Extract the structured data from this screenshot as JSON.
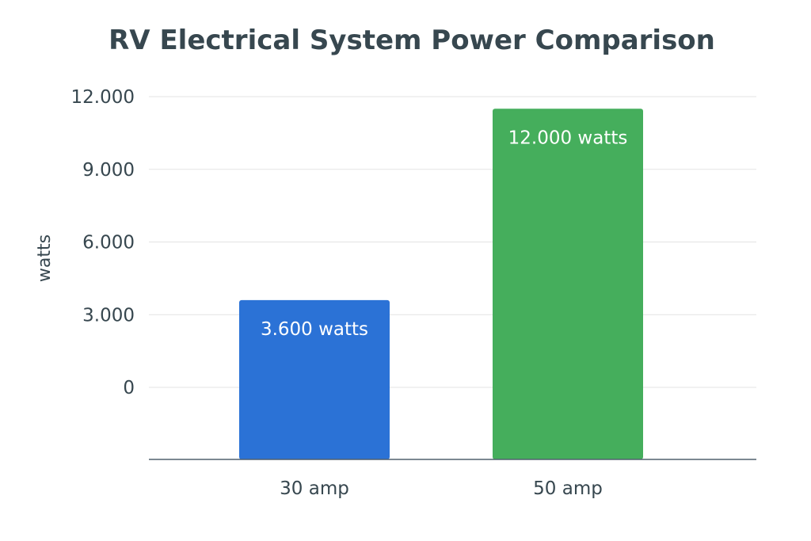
{
  "chart_data": {
    "type": "bar",
    "title": "RV Electrical System Power Comparison",
    "xlabel": "",
    "ylabel": "watts",
    "categories": [
      "30 amp",
      "50 amp"
    ],
    "values": [
      3600,
      12000
    ],
    "data_labels": [
      "3.600 watts",
      "12.000 watts"
    ],
    "colors": [
      "#2b72d6",
      "#45ae5c"
    ],
    "yticks": [
      0,
      3000,
      6000,
      9000,
      12000
    ],
    "ytick_labels": [
      "0",
      "3.000",
      "6.000",
      "9.000",
      "12.000"
    ],
    "ylim": [
      0,
      12000
    ],
    "grid": true,
    "legend": "none"
  }
}
